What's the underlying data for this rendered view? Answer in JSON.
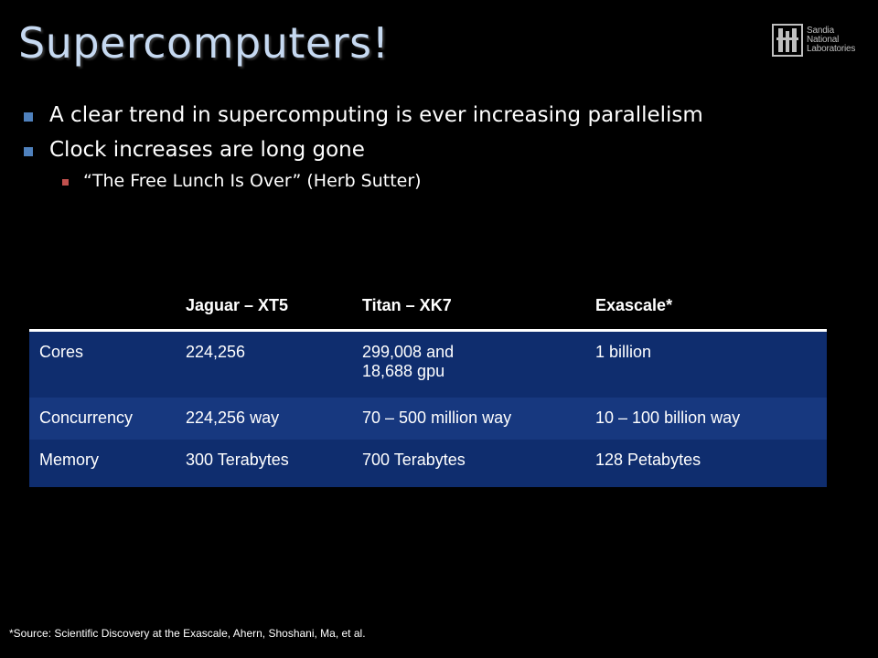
{
  "slide": {
    "title": "Supercomputers!",
    "logo": {
      "lines": [
        "Sandia",
        "National",
        "Laboratories"
      ]
    },
    "bullets": [
      "A clear trend in supercomputing is ever increasing parallelism",
      "Clock increases are long gone"
    ],
    "sub_bullets": [
      "“The Free Lunch Is Over” (Herb Sutter)"
    ],
    "footnote": "*Source: Scientific Discovery at the Exascale, Ahern, Shoshani,  Ma, et al."
  },
  "table": {
    "headers": [
      "",
      "Jaguar – XT5",
      "Titan – XK7",
      "Exascale*"
    ],
    "rows": [
      [
        "Cores",
        "224,256",
        "299,008 and",
        "1 billion"
      ],
      [
        "Concurrency",
        "224,256 way",
        "70 – 500 million way",
        "10 – 100 billion way"
      ],
      [
        "Memory",
        "300 Terabytes",
        "700 Terabytes",
        "128 Petabytes"
      ]
    ],
    "cores_titan_line2": "18,688 gpu"
  },
  "colors": {
    "background": "#000000",
    "title": "#c6d9f1",
    "bullet_marker": "#4f81bd",
    "sub_bullet_marker": "#c0504d",
    "table_row_dark": "#0f2d6e",
    "table_row_light": "#17387f"
  },
  "icons": {
    "logo": "sandia-thunderbird-logo-icon"
  }
}
